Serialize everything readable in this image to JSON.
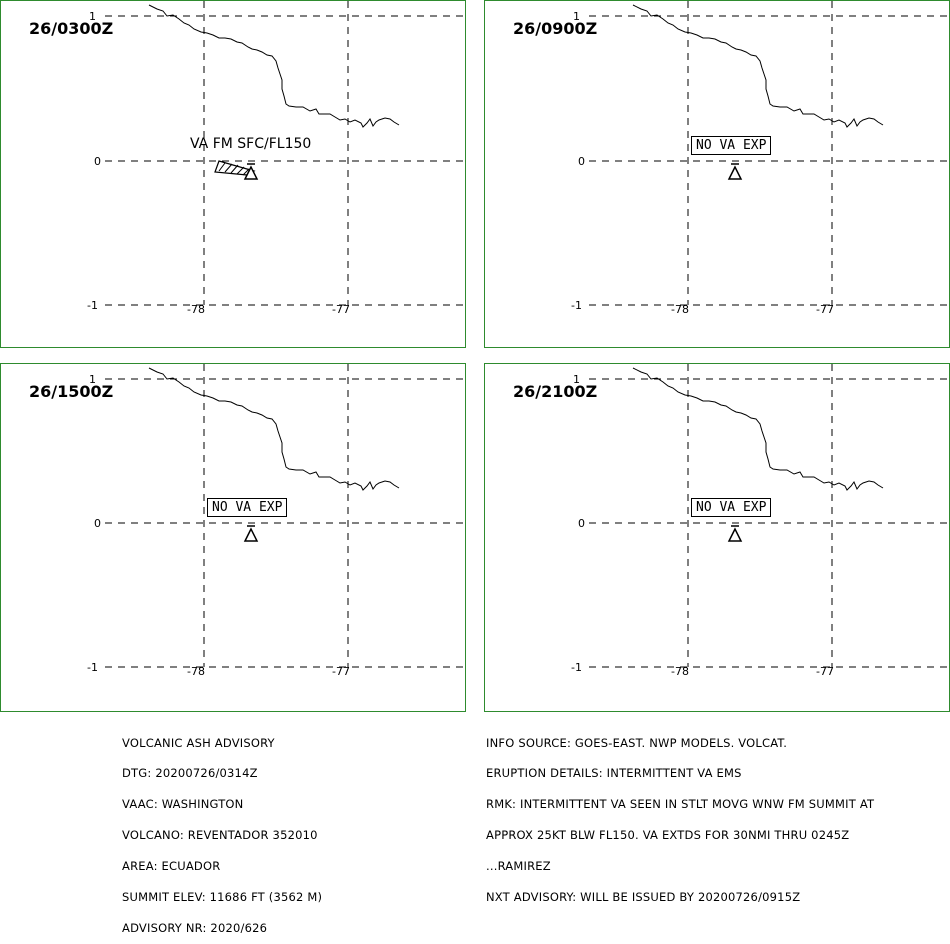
{
  "panels": [
    {
      "time": "26/0300Z",
      "label": "VA FM SFC/FL150",
      "label_boxed": false,
      "ash_plume": true
    },
    {
      "time": "26/0900Z",
      "label": "NO VA EXP",
      "label_boxed": true,
      "ash_plume": false
    },
    {
      "time": "26/1500Z",
      "label": "NO VA EXP",
      "label_boxed": true,
      "ash_plume": false
    },
    {
      "time": "26/2100Z",
      "label": "NO VA EXP",
      "label_boxed": true,
      "ash_plume": false
    }
  ],
  "map": {
    "lat_ticks": [
      "1",
      "0",
      "-1"
    ],
    "lon_ticks": [
      "-78",
      "-77"
    ],
    "volcano_symbol": "volcano-icon",
    "border_color": "#2e8b2e"
  },
  "advisory_left": [
    "VOLCANIC ASH ADVISORY",
    "DTG: 20200726/0314Z",
    "VAAC: WASHINGTON",
    "VOLCANO: REVENTADOR 352010",
    "AREA: ECUADOR",
    "SUMMIT ELEV: 11686 FT (3562 M)",
    "ADVISORY NR: 2020/626"
  ],
  "advisory_right": [
    "INFO SOURCE: GOES-EAST. NWP MODELS. VOLCAT.",
    "ERUPTION DETAILS: INTERMITTENT VA EMS",
    "RMK: INTERMITTENT VA SEEN IN STLT MOVG WNW FM SUMMIT AT",
    "APPROX 25KT BLW FL150. VA EXTDS FOR 30NMI THRU 0245Z",
    "...RAMIREZ",
    "NXT ADVISORY: WILL BE ISSUED BY 20200726/0915Z"
  ]
}
